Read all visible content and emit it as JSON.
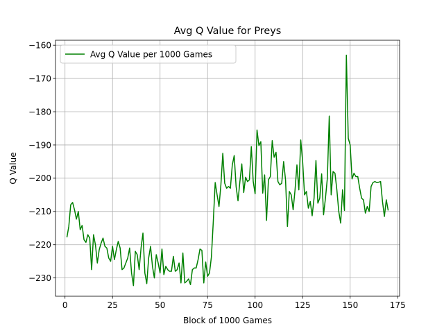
{
  "chart_data": {
    "type": "line",
    "title": "Avg Q Value for Preys",
    "xlabel": "Block of 1000 Games",
    "ylabel": "Q Value",
    "xlim": [
      -5,
      176
    ],
    "ylim": [
      -235.5,
      -158.5
    ],
    "xticks": [
      0,
      25,
      50,
      75,
      100,
      125,
      150,
      175
    ],
    "yticks": [
      -230,
      -220,
      -210,
      -200,
      -190,
      -180,
      -170,
      -160
    ],
    "xtick_labels": [
      "0",
      "25",
      "50",
      "75",
      "100",
      "125",
      "150",
      "175"
    ],
    "ytick_labels": [
      "−230",
      "−220",
      "−210",
      "−200",
      "−190",
      "−180",
      "−170",
      "−160"
    ],
    "grid": true,
    "legend_position": "top-left",
    "series": [
      {
        "name": "Avg Q Value per 1000 Games",
        "color": "#008000",
        "x": [
          1,
          2,
          3,
          4,
          5,
          6,
          7,
          8,
          9,
          10,
          11,
          12,
          13,
          14,
          15,
          16,
          17,
          18,
          19,
          20,
          21,
          22,
          23,
          24,
          25,
          26,
          27,
          28,
          29,
          30,
          31,
          32,
          33,
          34,
          35,
          36,
          37,
          38,
          39,
          40,
          41,
          42,
          43,
          44,
          45,
          46,
          47,
          48,
          49,
          50,
          51,
          52,
          53,
          54,
          55,
          56,
          57,
          58,
          59,
          60,
          61,
          62,
          63,
          64,
          65,
          66,
          67,
          68,
          69,
          70,
          71,
          72,
          73,
          74,
          75,
          76,
          77,
          78,
          79,
          80,
          81,
          82,
          83,
          84,
          85,
          86,
          87,
          88,
          89,
          90,
          91,
          92,
          93,
          94,
          95,
          96,
          97,
          98,
          99,
          100,
          101,
          102,
          103,
          104,
          105,
          106,
          107,
          108,
          109,
          110,
          111,
          112,
          113,
          114,
          115,
          116,
          117,
          118,
          119,
          120,
          121,
          122,
          123,
          124,
          125,
          126,
          127,
          128,
          129,
          130,
          131,
          132,
          133,
          134,
          135,
          136,
          137,
          138,
          139,
          140,
          141,
          142,
          143,
          144,
          145,
          146,
          147,
          148,
          149,
          150,
          151,
          152,
          153,
          154,
          155,
          156,
          157,
          158,
          159,
          160,
          161,
          162,
          163,
          164,
          165,
          166,
          167,
          168,
          169,
          170
        ],
        "values": [
          -217.8,
          -214.5,
          -208,
          -207.3,
          -209.5,
          -212.3,
          -210,
          -215.5,
          -214.2,
          -218.5,
          -219.3,
          -217,
          -218,
          -227.5,
          -217,
          -220,
          -225.5,
          -221.5,
          -219.5,
          -218,
          -220.5,
          -221,
          -224,
          -225,
          -220.5,
          -224.5,
          -221.5,
          -219,
          -221,
          -227.5,
          -227,
          -225.5,
          -224,
          -221,
          -228.5,
          -232.3,
          -222,
          -223,
          -227.5,
          -221,
          -216.5,
          -228.5,
          -231.7,
          -224,
          -220.5,
          -226.5,
          -230,
          -223,
          -225.5,
          -228.5,
          -221.3,
          -229,
          -226.5,
          -227.5,
          -228,
          -228,
          -223.5,
          -228,
          -227.5,
          -225.5,
          -231.5,
          -222.5,
          -231.5,
          -231,
          -230.3,
          -232,
          -227.5,
          -227,
          -227,
          -224.5,
          -221.3,
          -221.7,
          -231.5,
          -225.2,
          -229.5,
          -228.5,
          -223.7,
          -213,
          -201.3,
          -205,
          -208.5,
          -202,
          -192.5,
          -201.5,
          -203,
          -202.5,
          -203,
          -196,
          -193.2,
          -202.5,
          -206.8,
          -201,
          -195.7,
          -204.3,
          -199.7,
          -201,
          -200.5,
          -190.5,
          -201,
          -204.7,
          -185.5,
          -190.2,
          -189,
          -204.5,
          -199,
          -212.7,
          -200.5,
          -199.5,
          -188.7,
          -193.7,
          -192.2,
          -201,
          -202,
          -201.5,
          -195,
          -200.5,
          -214.5,
          -204,
          -205,
          -209.5,
          -203.5,
          -196,
          -203.5,
          -188.5,
          -195,
          -205,
          -204,
          -209,
          -207,
          -211.3,
          -206,
          -194.7,
          -207.5,
          -206,
          -198.7,
          -211,
          -206,
          -200,
          -181.3,
          -205,
          -198,
          -198.5,
          -203.5,
          -210,
          -213.5,
          -203.5,
          -209.7,
          -163,
          -188,
          -190,
          -200.2,
          -198.5,
          -199.5,
          -199.5,
          -203,
          -206,
          -206.5,
          -210.5,
          -208.5,
          -210,
          -202.5,
          -201.3,
          -201,
          -201.3,
          -201.2,
          -201,
          -207,
          -211.5,
          -206.5,
          -209.7
        ]
      }
    ]
  }
}
